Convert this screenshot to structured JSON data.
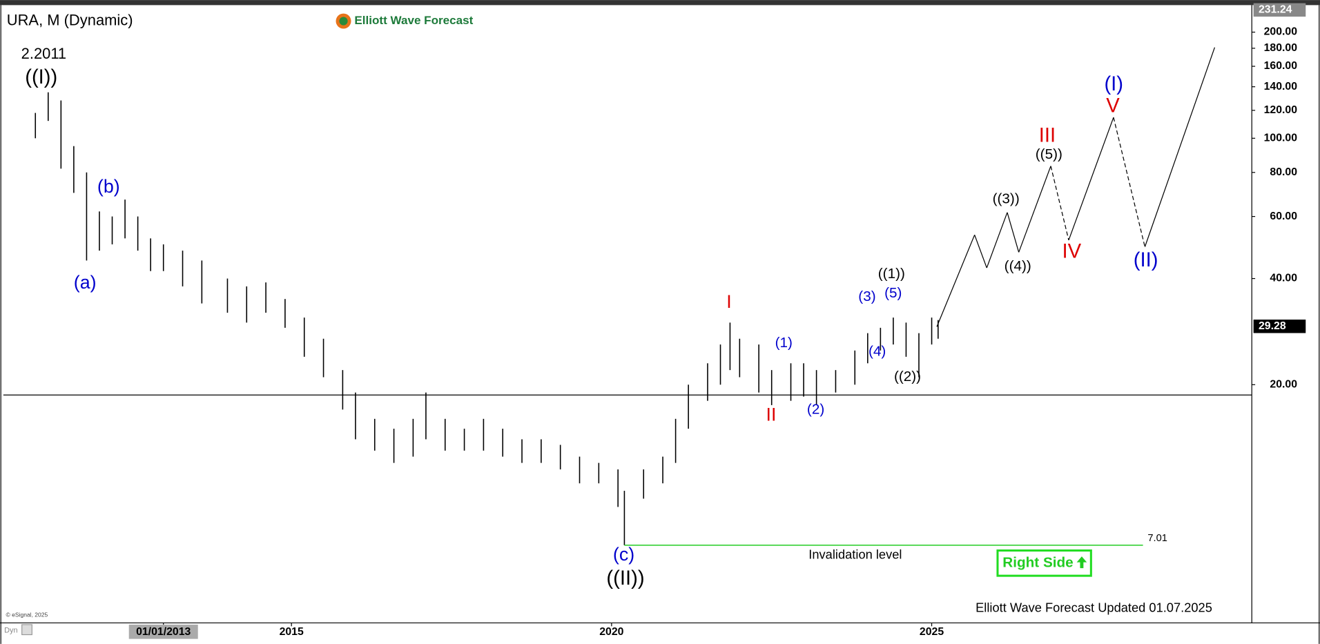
{
  "chart_data": {
    "type": "hilo",
    "title": "URA, M (Dynamic)",
    "brand": "Elliott Wave Forecast",
    "footer": "Elliott Wave Forecast Updated 01.07.2025",
    "copyright": "© eSignal, 2025",
    "mode": "Dyn",
    "badge": "Right Side",
    "log_scale": true,
    "color": "#000000",
    "xlim": [
      2010.5,
      2030
    ],
    "xticks": [
      {
        "value": 2013,
        "label": "01/01/2013"
      },
      2015,
      2020,
      2025
    ],
    "ylim": [
      4.22,
      236
    ],
    "yticks": [
      {
        "value": 20,
        "label": "20.00"
      },
      {
        "value": 40,
        "label": "40.00"
      },
      {
        "value": 60,
        "label": "60.00"
      },
      {
        "value": 80,
        "label": "80.00"
      },
      {
        "value": 100,
        "label": "100.00"
      },
      {
        "value": 120,
        "label": "120.00"
      },
      {
        "value": 140,
        "label": "140.00"
      },
      {
        "value": 160,
        "label": "160.00"
      },
      {
        "value": 180,
        "label": "180.00"
      },
      {
        "value": 200,
        "label": "200.00"
      }
    ],
    "top_price": 231.24,
    "last_price": 29.28,
    "reference_line": 18.7,
    "bars": {
      "x": [
        2011.0,
        2011.2,
        2011.4,
        2011.6,
        2011.8,
        2012.0,
        2012.2,
        2012.4,
        2012.6,
        2012.8,
        2013.0,
        2013.3,
        2013.6,
        2014.0,
        2014.3,
        2014.6,
        2014.9,
        2015.2,
        2015.5,
        2015.8,
        2016.0,
        2016.3,
        2016.6,
        2016.9,
        2017.1,
        2017.4,
        2017.7,
        2018.0,
        2018.3,
        2018.6,
        2018.9,
        2019.2,
        2019.5,
        2019.8,
        2020.1,
        2020.2,
        2020.5,
        2020.8,
        2021.0,
        2021.2,
        2021.5,
        2021.7,
        2021.85,
        2022.0,
        2022.3,
        2022.5,
        2022.8,
        2023.0,
        2023.2,
        2023.5,
        2023.8,
        2024.0,
        2024.2,
        2024.4,
        2024.6,
        2024.8,
        2025.0,
        2025.1
      ],
      "high": [
        118,
        135,
        128,
        95,
        80,
        62,
        60,
        67,
        60,
        52,
        50,
        48,
        45,
        40,
        38,
        39,
        35,
        31,
        27,
        22,
        19,
        16,
        15,
        16,
        19,
        16,
        15,
        16,
        15,
        14,
        14,
        13.5,
        12.5,
        12,
        11.5,
        10,
        11.5,
        12.5,
        16,
        20,
        23,
        26,
        30,
        27,
        26,
        22,
        23,
        23,
        22,
        22,
        25,
        28,
        29,
        31,
        30,
        28,
        31,
        30.5
      ],
      "low": [
        100,
        112,
        82,
        70,
        45,
        48,
        50,
        52,
        48,
        42,
        42,
        38,
        34,
        32,
        30,
        32,
        29,
        24,
        21,
        17,
        14,
        13,
        12,
        12.5,
        14,
        13,
        13,
        13,
        12.5,
        12,
        12,
        11.5,
        10.5,
        10.5,
        9.0,
        7.01,
        9.5,
        10.5,
        12,
        15,
        18,
        20,
        22,
        21,
        19,
        17.5,
        18,
        18.5,
        17.5,
        19,
        20,
        23,
        25,
        26,
        24,
        21,
        26,
        27
      ]
    },
    "projection": {
      "x": [
        2025.08,
        2025.67,
        2025.86,
        2026.18,
        2026.36,
        2026.86,
        2027.14,
        2027.84,
        2028.33,
        2029.42
      ],
      "values": [
        29.2,
        53.2,
        42.9,
        61.6,
        47.5,
        83.4,
        51.4,
        114.6,
        49.2,
        181
      ],
      "dashed": [
        false,
        false,
        false,
        false,
        false,
        true,
        false,
        true,
        false
      ]
    },
    "invalidation": {
      "label": "Invalidation level",
      "value": 7.01,
      "x": [
        2020.2,
        2028.3
      ],
      "color": "#22cc22"
    },
    "annotations": [
      {
        "text": "2.2011",
        "color": "#000000"
      },
      {
        "text": "((I))",
        "color": "#000000"
      },
      {
        "text": "(b)",
        "color": "#0000cc"
      },
      {
        "text": "(a)",
        "color": "#0000cc"
      },
      {
        "text": "I",
        "color": "#dd0000"
      },
      {
        "text": "II",
        "color": "#dd0000"
      },
      {
        "text": "(1)",
        "color": "#0000cc"
      },
      {
        "text": "(2)",
        "color": "#0000cc"
      },
      {
        "text": "(3)",
        "color": "#0000cc"
      },
      {
        "text": "(5)",
        "color": "#0000cc"
      },
      {
        "text": "(4)",
        "color": "#0000cc"
      },
      {
        "text": "((1))",
        "color": "#000000"
      },
      {
        "text": "((2))",
        "color": "#000000"
      },
      {
        "text": "((3))",
        "color": "#000000"
      },
      {
        "text": "((4))",
        "color": "#000000"
      },
      {
        "text": "((5))",
        "color": "#000000"
      },
      {
        "text": "III",
        "color": "#dd0000"
      },
      {
        "text": "IV",
        "color": "#dd0000"
      },
      {
        "text": "V",
        "color": "#dd0000"
      },
      {
        "text": "(I)",
        "color": "#0000cc"
      },
      {
        "text": "(II)",
        "color": "#0000cc"
      },
      {
        "text": "(c)",
        "color": "#0000cc"
      },
      {
        "text": "((II))",
        "color": "#000000"
      }
    ]
  }
}
